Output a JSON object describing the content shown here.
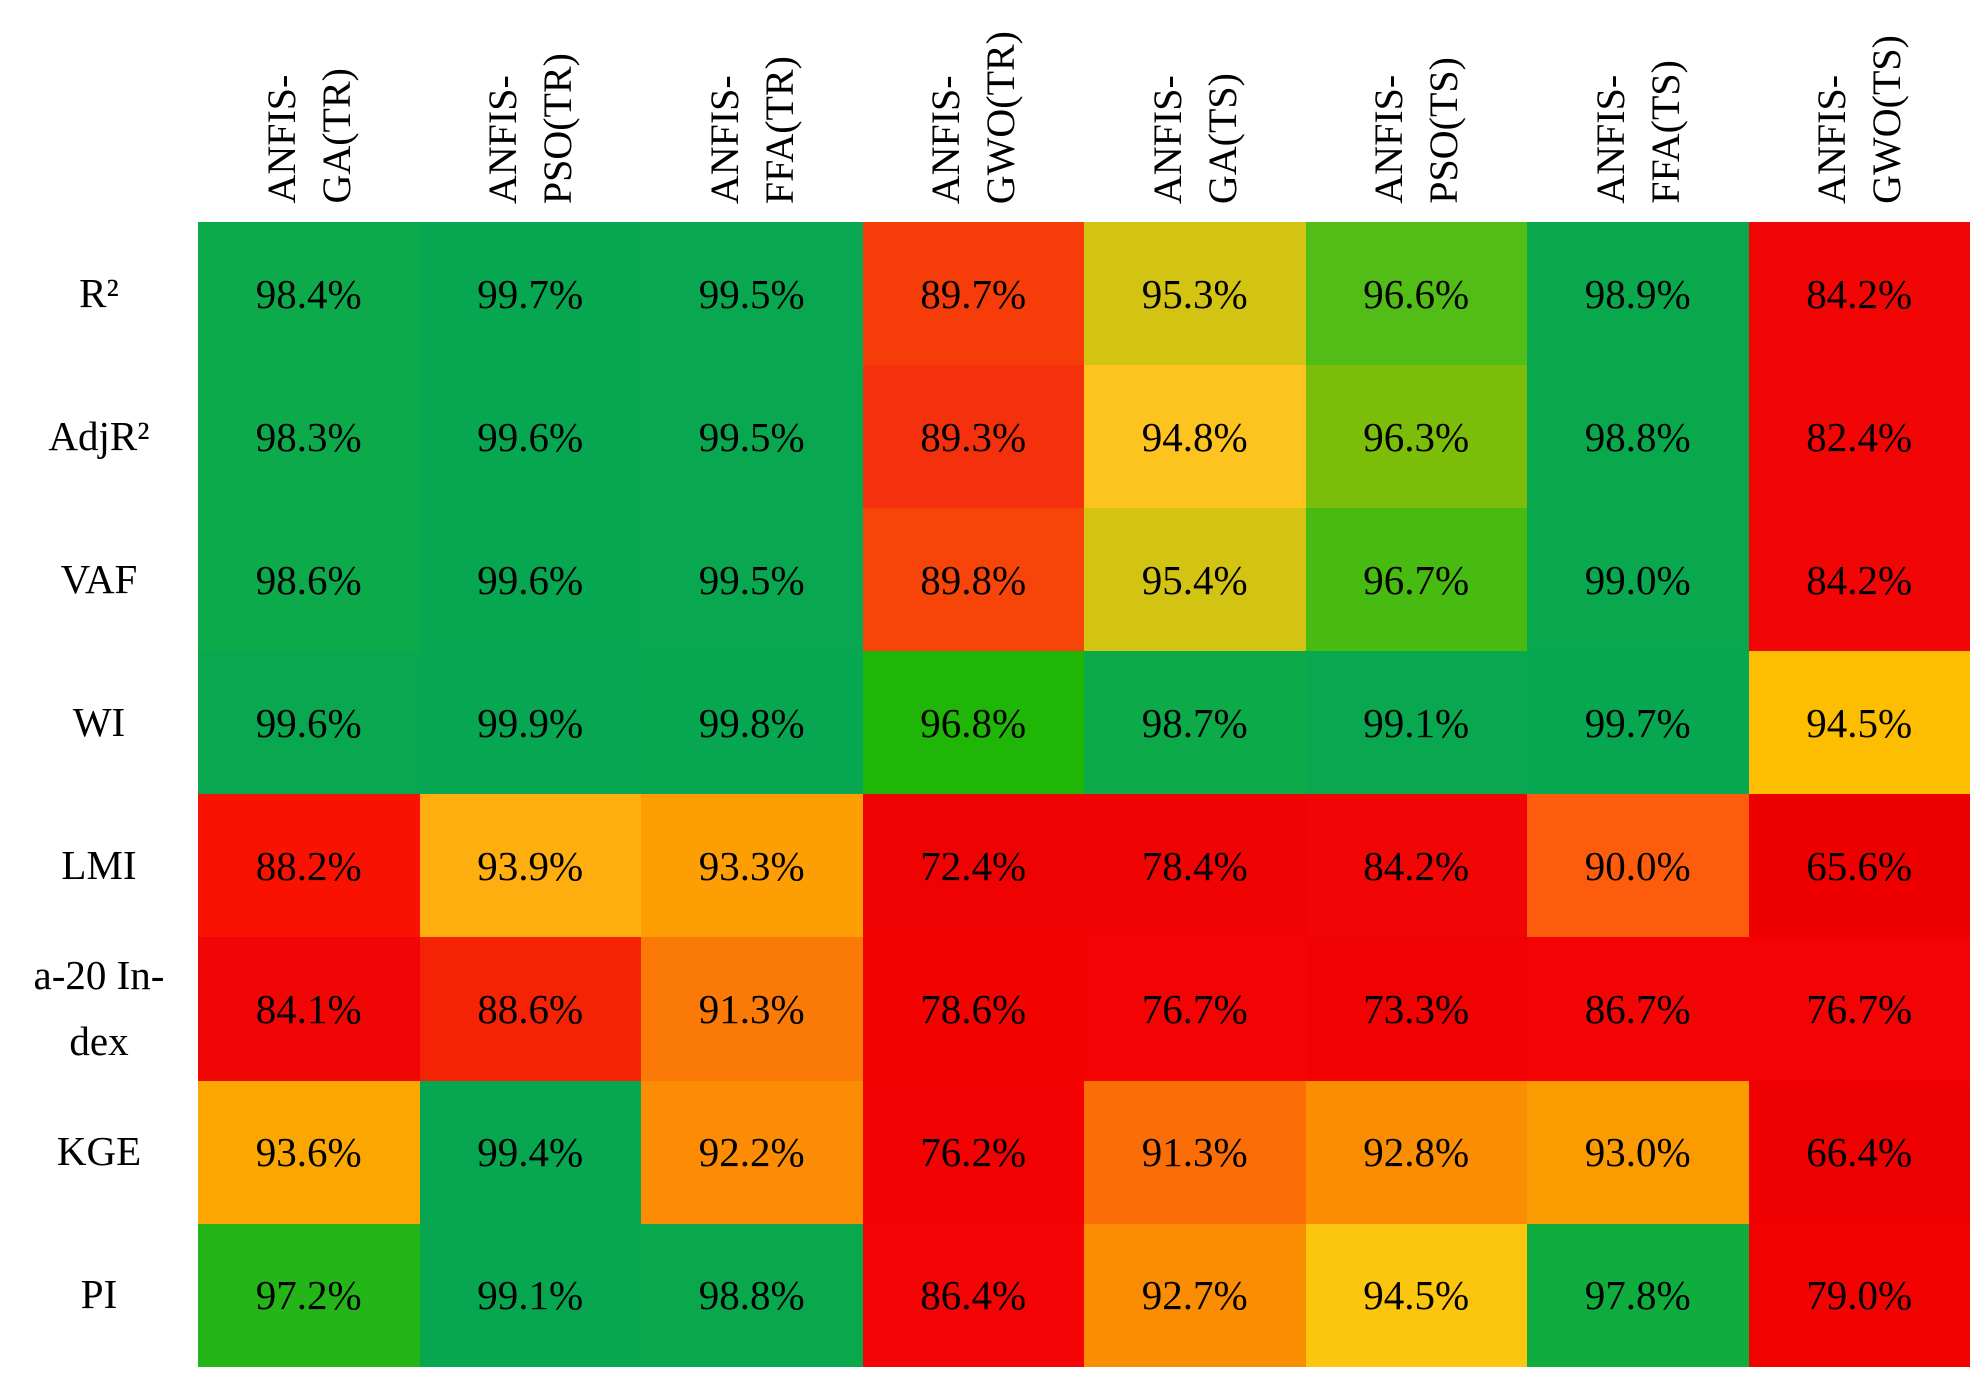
{
  "figure": {
    "background": "#ffffff",
    "text_color": "#000000"
  },
  "table": {
    "corner": "",
    "columns": [
      {
        "line1": "ANFIS-",
        "line2": "GA(TR)"
      },
      {
        "line1": "ANFIS-",
        "line2": "PSO(TR)"
      },
      {
        "line1": "ANFIS-",
        "line2": "FFA(TR)"
      },
      {
        "line1": "ANFIS-",
        "line2": "GWO(TR)"
      },
      {
        "line1": "ANFIS-",
        "line2": "GA(TS)"
      },
      {
        "line1": "ANFIS-",
        "line2": "PSO(TS)"
      },
      {
        "line1": "ANFIS-",
        "line2": "FFA(TS)"
      },
      {
        "line1": "ANFIS-",
        "line2": "GWO(TS)"
      }
    ],
    "rows": [
      {
        "label": "R²",
        "cells": [
          {
            "value": "98.4%",
            "color": "#0caa4a"
          },
          {
            "value": "99.7%",
            "color": "#07a751"
          },
          {
            "value": "99.5%",
            "color": "#08a750"
          },
          {
            "value": "89.7%",
            "color": "#f63d09"
          },
          {
            "value": "95.3%",
            "color": "#d3c414"
          },
          {
            "value": "96.6%",
            "color": "#53bd17"
          },
          {
            "value": "98.9%",
            "color": "#0aa84d"
          },
          {
            "value": "84.2%",
            "color": "#f20505"
          }
        ]
      },
      {
        "label": "AdjR²",
        "cells": [
          {
            "value": "98.3%",
            "color": "#0caa4a"
          },
          {
            "value": "99.6%",
            "color": "#07a751"
          },
          {
            "value": "99.5%",
            "color": "#08a750"
          },
          {
            "value": "89.3%",
            "color": "#f5300c"
          },
          {
            "value": "94.8%",
            "color": "#fdc31f"
          },
          {
            "value": "96.3%",
            "color": "#7cbd0a"
          },
          {
            "value": "98.8%",
            "color": "#0aa84d"
          },
          {
            "value": "82.4%",
            "color": "#f20505"
          }
        ]
      },
      {
        "label": "VAF",
        "cells": [
          {
            "value": "98.6%",
            "color": "#0caa4a"
          },
          {
            "value": "99.6%",
            "color": "#07a751"
          },
          {
            "value": "99.5%",
            "color": "#08a750"
          },
          {
            "value": "89.8%",
            "color": "#f7450a"
          },
          {
            "value": "95.4%",
            "color": "#d3c414"
          },
          {
            "value": "96.7%",
            "color": "#47bb11"
          },
          {
            "value": "99.0%",
            "color": "#09a84e"
          },
          {
            "value": "84.2%",
            "color": "#f20505"
          }
        ]
      },
      {
        "label": "WI",
        "cells": [
          {
            "value": "99.6%",
            "color": "#08a750"
          },
          {
            "value": "99.9%",
            "color": "#06a652"
          },
          {
            "value": "99.8%",
            "color": "#07a751"
          },
          {
            "value": "96.8%",
            "color": "#1fb607"
          },
          {
            "value": "98.7%",
            "color": "#0caa49"
          },
          {
            "value": "99.1%",
            "color": "#08a750"
          },
          {
            "value": "99.7%",
            "color": "#07a751"
          },
          {
            "value": "94.5%",
            "color": "#fdbe02"
          }
        ]
      },
      {
        "label": "LMI",
        "cells": [
          {
            "value": "88.2%",
            "color": "#f91202"
          },
          {
            "value": "93.9%",
            "color": "#feae0e"
          },
          {
            "value": "93.3%",
            "color": "#fc9e04"
          },
          {
            "value": "72.4%",
            "color": "#f00202"
          },
          {
            "value": "78.4%",
            "color": "#f20303"
          },
          {
            "value": "84.2%",
            "color": "#f20505"
          },
          {
            "value": "90.0%",
            "color": "#fe5c0d"
          },
          {
            "value": "65.6%",
            "color": "#ef0000"
          }
        ]
      },
      {
        "label": "a-20 In-\ndex",
        "cells": [
          {
            "value": "84.1%",
            "color": "#f20505"
          },
          {
            "value": "88.6%",
            "color": "#f52306"
          },
          {
            "value": "91.3%",
            "color": "#fb7907"
          },
          {
            "value": "78.6%",
            "color": "#f30202"
          },
          {
            "value": "76.7%",
            "color": "#f30303"
          },
          {
            "value": "73.3%",
            "color": "#f10101"
          },
          {
            "value": "86.7%",
            "color": "#f40404"
          },
          {
            "value": "76.7%",
            "color": "#f30303"
          }
        ]
      },
      {
        "label": "KGE",
        "cells": [
          {
            "value": "93.6%",
            "color": "#fca602"
          },
          {
            "value": "99.4%",
            "color": "#07a751"
          },
          {
            "value": "92.2%",
            "color": "#fb8c03"
          },
          {
            "value": "76.2%",
            "color": "#f20202"
          },
          {
            "value": "91.3%",
            "color": "#fb6d07"
          },
          {
            "value": "92.8%",
            "color": "#fb8d03"
          },
          {
            "value": "93.0%",
            "color": "#fb9b02"
          },
          {
            "value": "66.4%",
            "color": "#ef0101"
          }
        ]
      },
      {
        "label": "PI",
        "cells": [
          {
            "value": "97.2%",
            "color": "#24b519"
          },
          {
            "value": "99.1%",
            "color": "#07a751"
          },
          {
            "value": "98.8%",
            "color": "#0aa84d"
          },
          {
            "value": "86.4%",
            "color": "#f40404"
          },
          {
            "value": "92.7%",
            "color": "#fb8d03"
          },
          {
            "value": "94.5%",
            "color": "#fcc50e"
          },
          {
            "value": "97.8%",
            "color": "#0fad3e"
          },
          {
            "value": "79.0%",
            "color": "#f30202"
          }
        ]
      }
    ]
  },
  "chart_data": {
    "type": "heatmap",
    "title": "",
    "columns": [
      "ANFIS-GA(TR)",
      "ANFIS-PSO(TR)",
      "ANFIS-FFA(TR)",
      "ANFIS-GWO(TR)",
      "ANFIS-GA(TS)",
      "ANFIS-PSO(TS)",
      "ANFIS-FFA(TS)",
      "ANFIS-GWO(TS)"
    ],
    "rows": [
      "R²",
      "AdjR²",
      "VAF",
      "WI",
      "LMI",
      "a-20 Index",
      "KGE",
      "PI"
    ],
    "values_percent": [
      [
        98.4,
        99.7,
        99.5,
        89.7,
        95.3,
        96.6,
        98.9,
        84.2
      ],
      [
        98.3,
        99.6,
        99.5,
        89.3,
        94.8,
        96.3,
        98.8,
        82.4
      ],
      [
        98.6,
        99.6,
        99.5,
        89.8,
        95.4,
        96.7,
        99.0,
        84.2
      ],
      [
        99.6,
        99.9,
        99.8,
        96.8,
        98.7,
        99.1,
        99.7,
        94.5
      ],
      [
        88.2,
        93.9,
        93.3,
        72.4,
        78.4,
        84.2,
        90.0,
        65.6
      ],
      [
        84.1,
        88.6,
        91.3,
        78.6,
        76.7,
        73.3,
        86.7,
        76.7
      ],
      [
        93.6,
        99.4,
        92.2,
        76.2,
        91.3,
        92.8,
        93.0,
        66.4
      ],
      [
        97.2,
        99.1,
        98.8,
        86.4,
        92.7,
        94.5,
        97.8,
        79.0
      ]
    ],
    "color_scale": {
      "low": "#ef0000",
      "mid": "#ffc000",
      "high": "#07a751",
      "note": "red → orange → yellow → green increasing with value; cell colors listed per cell in table.rows"
    },
    "legend": "none",
    "grid": "off"
  }
}
